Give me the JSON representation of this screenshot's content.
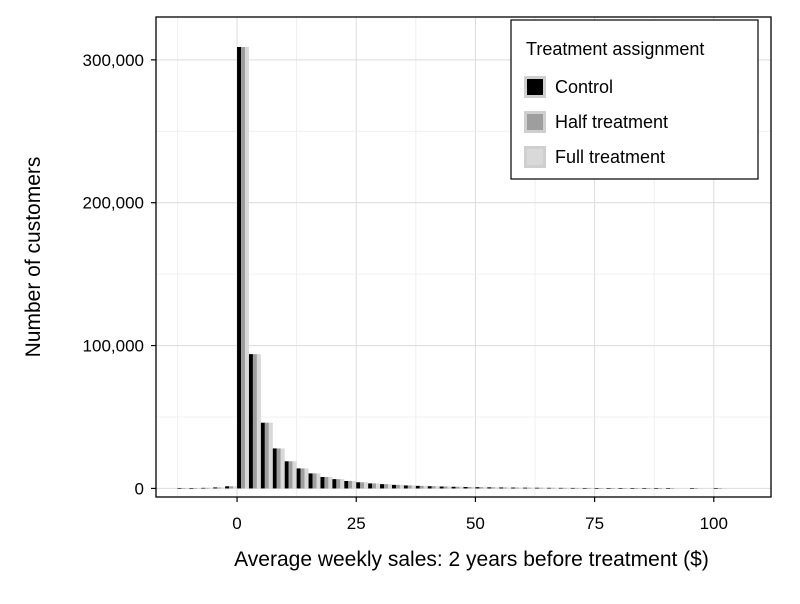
{
  "chart_data": {
    "type": "bar",
    "xlabel": "Average weekly sales: 2 years before treatment ($)",
    "ylabel": "Number of customers",
    "xlim": [
      -17,
      112
    ],
    "ylim": [
      -6000,
      330000
    ],
    "x_ticks": [
      0,
      25,
      50,
      75,
      100
    ],
    "x_tick_labels": [
      "0",
      "25",
      "50",
      "75",
      "100"
    ],
    "y_ticks": [
      0,
      100000,
      200000,
      300000
    ],
    "y_tick_labels": [
      "0",
      "100,000",
      "200,000",
      "300,000"
    ],
    "grid": true,
    "bin_width": 2.5,
    "x": [
      -12.5,
      -10,
      -7.5,
      -5,
      -2.5,
      0,
      2.5,
      5,
      7.5,
      10,
      12.5,
      15,
      17.5,
      20,
      22.5,
      25,
      27.5,
      30,
      32.5,
      35,
      37.5,
      40,
      42.5,
      45,
      47.5,
      50,
      52.5,
      55,
      57.5,
      60,
      62.5,
      65,
      67.5,
      70,
      72.5,
      75,
      77.5,
      80,
      82.5,
      85,
      87.5,
      90,
      95,
      100
    ],
    "legend": {
      "title": "Treatment assignment",
      "position": "top-right"
    },
    "series": [
      {
        "name": "Control",
        "color": "#000000",
        "values": [
          200,
          300,
          400,
          700,
          1500,
          309000,
          94000,
          46000,
          28000,
          19000,
          14000,
          10500,
          8000,
          6500,
          5200,
          4300,
          3500,
          3000,
          2500,
          2100,
          1800,
          1550,
          1350,
          1150,
          1000,
          880,
          780,
          690,
          610,
          540,
          480,
          430,
          390,
          350,
          310,
          280,
          250,
          220,
          200,
          180,
          160,
          140,
          120,
          100
        ]
      },
      {
        "name": "Half treatment",
        "color": "#9e9e9e",
        "values": [
          200,
          300,
          400,
          700,
          1500,
          309000,
          94000,
          46000,
          28000,
          19000,
          14000,
          10500,
          8000,
          6500,
          5200,
          4300,
          3500,
          3000,
          2500,
          2100,
          1800,
          1550,
          1350,
          1150,
          1000,
          880,
          780,
          690,
          610,
          540,
          480,
          430,
          390,
          350,
          310,
          280,
          250,
          220,
          200,
          180,
          160,
          140,
          120,
          100
        ]
      },
      {
        "name": "Full treatment",
        "color": "#d9d9d9",
        "values": [
          200,
          300,
          400,
          700,
          1500,
          309000,
          94000,
          46000,
          28000,
          19000,
          14000,
          10500,
          8000,
          6500,
          5200,
          4300,
          3500,
          3000,
          2500,
          2100,
          1800,
          1550,
          1350,
          1150,
          1000,
          880,
          780,
          690,
          610,
          540,
          480,
          430,
          390,
          350,
          310,
          280,
          250,
          220,
          200,
          180,
          160,
          140,
          120,
          100
        ]
      }
    ]
  }
}
